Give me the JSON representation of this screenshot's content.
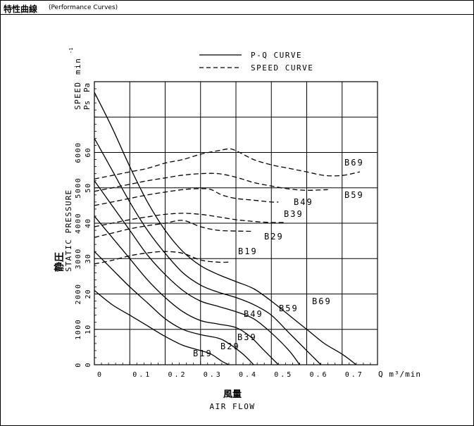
{
  "header": {
    "title_ja": "特性曲線",
    "title_en": "(Performance Curves)"
  },
  "legend": {
    "pq": "P-Q CURVE",
    "speed": "SPEED CURVE"
  },
  "axes": {
    "y_label_ja": "静圧",
    "y_label_en": "STATIC PRESSURE",
    "speed_label": "SPEED",
    "speed_unit": "min",
    "speed_unit_sup": "-1",
    "ps_label": "Ps",
    "pa_label": "Pa",
    "x_label_ja": "風量",
    "x_label_en": "AIR FLOW",
    "x_unit": "Q m³/min"
  },
  "chart_data": {
    "type": "line",
    "title": "特性曲線 (Performance Curves)",
    "xlabel": "風量 AIR FLOW (Q m³/min)",
    "ylabel": "静圧 STATIC PRESSURE (Ps Pa) / SPEED (min⁻¹)",
    "xlim": [
      0,
      0.75
    ],
    "ylim_pressure": [
      0,
      80
    ],
    "ylim_speed": [
      0,
      8000
    ],
    "grid": true,
    "legend_position": "top",
    "x_ticks": [
      "0",
      "0.1",
      "0.2",
      "0.3",
      "0.4",
      "0.5",
      "0.6",
      "0.7"
    ],
    "y_ticks_pressure": [
      "0",
      "10",
      "20",
      "30",
      "40",
      "50",
      "60"
    ],
    "y_ticks_speed": [
      "0",
      "1000",
      "2000",
      "3000",
      "4000",
      "5000",
      "6000"
    ],
    "pq_series": [
      {
        "name": "B19",
        "points": [
          [
            0,
            21
          ],
          [
            0.05,
            17
          ],
          [
            0.1,
            14
          ],
          [
            0.15,
            11
          ],
          [
            0.2,
            8
          ],
          [
            0.25,
            5.5
          ],
          [
            0.3,
            4
          ],
          [
            0.33,
            3
          ],
          [
            0.36,
            1
          ],
          [
            0.38,
            0
          ]
        ]
      },
      {
        "name": "B29",
        "points": [
          [
            0,
            32
          ],
          [
            0.05,
            27
          ],
          [
            0.1,
            22
          ],
          [
            0.15,
            17.5
          ],
          [
            0.2,
            13
          ],
          [
            0.25,
            10
          ],
          [
            0.3,
            8.5
          ],
          [
            0.35,
            7.5
          ],
          [
            0.38,
            6
          ],
          [
            0.42,
            3
          ],
          [
            0.45,
            0
          ]
        ]
      },
      {
        "name": "B39",
        "points": [
          [
            0,
            42
          ],
          [
            0.05,
            36
          ],
          [
            0.1,
            30
          ],
          [
            0.15,
            24
          ],
          [
            0.2,
            19
          ],
          [
            0.25,
            15
          ],
          [
            0.3,
            12.5
          ],
          [
            0.35,
            11.5
          ],
          [
            0.4,
            10.5
          ],
          [
            0.44,
            8
          ],
          [
            0.48,
            4
          ],
          [
            0.52,
            0
          ]
        ]
      },
      {
        "name": "B49",
        "points": [
          [
            0,
            52
          ],
          [
            0.05,
            45
          ],
          [
            0.1,
            38
          ],
          [
            0.15,
            31
          ],
          [
            0.2,
            25.5
          ],
          [
            0.25,
            21
          ],
          [
            0.3,
            18
          ],
          [
            0.35,
            16.5
          ],
          [
            0.4,
            15
          ],
          [
            0.45,
            13
          ],
          [
            0.5,
            9
          ],
          [
            0.55,
            4
          ],
          [
            0.58,
            0
          ]
        ]
      },
      {
        "name": "B59",
        "points": [
          [
            0,
            64
          ],
          [
            0.05,
            55
          ],
          [
            0.1,
            46
          ],
          [
            0.15,
            38
          ],
          [
            0.2,
            31.5
          ],
          [
            0.25,
            26
          ],
          [
            0.3,
            22.5
          ],
          [
            0.35,
            20.5
          ],
          [
            0.4,
            19
          ],
          [
            0.45,
            17
          ],
          [
            0.5,
            14
          ],
          [
            0.55,
            9
          ],
          [
            0.6,
            4
          ],
          [
            0.64,
            0
          ]
        ]
      },
      {
        "name": "B69",
        "points": [
          [
            0,
            77
          ],
          [
            0.05,
            67
          ],
          [
            0.1,
            56
          ],
          [
            0.15,
            46
          ],
          [
            0.2,
            38
          ],
          [
            0.25,
            32
          ],
          [
            0.3,
            28
          ],
          [
            0.35,
            25.5
          ],
          [
            0.4,
            23.5
          ],
          [
            0.45,
            21.5
          ],
          [
            0.5,
            18
          ],
          [
            0.55,
            14
          ],
          [
            0.6,
            10
          ],
          [
            0.65,
            6
          ],
          [
            0.7,
            3
          ],
          [
            0.74,
            0
          ]
        ]
      }
    ],
    "speed_series": [
      {
        "name": "B19",
        "points": [
          [
            0,
            2850
          ],
          [
            0.05,
            2950
          ],
          [
            0.1,
            3080
          ],
          [
            0.15,
            3160
          ],
          [
            0.2,
            3200
          ],
          [
            0.25,
            3150
          ],
          [
            0.3,
            2960
          ],
          [
            0.35,
            2900
          ],
          [
            0.38,
            2900
          ]
        ]
      },
      {
        "name": "B29",
        "points": [
          [
            0,
            3600
          ],
          [
            0.05,
            3720
          ],
          [
            0.1,
            3840
          ],
          [
            0.15,
            3930
          ],
          [
            0.2,
            4000
          ],
          [
            0.25,
            4080
          ],
          [
            0.3,
            3900
          ],
          [
            0.35,
            3800
          ],
          [
            0.4,
            3780
          ],
          [
            0.45,
            3770
          ]
        ]
      },
      {
        "name": "B39",
        "points": [
          [
            0,
            3900
          ],
          [
            0.05,
            4000
          ],
          [
            0.1,
            4100
          ],
          [
            0.15,
            4180
          ],
          [
            0.2,
            4250
          ],
          [
            0.25,
            4280
          ],
          [
            0.3,
            4250
          ],
          [
            0.35,
            4180
          ],
          [
            0.4,
            4100
          ],
          [
            0.45,
            4050
          ],
          [
            0.5,
            4020
          ],
          [
            0.54,
            4020
          ]
        ]
      },
      {
        "name": "B49",
        "points": [
          [
            0,
            4500
          ],
          [
            0.05,
            4600
          ],
          [
            0.1,
            4700
          ],
          [
            0.15,
            4800
          ],
          [
            0.2,
            4880
          ],
          [
            0.25,
            4950
          ],
          [
            0.3,
            4980
          ],
          [
            0.33,
            4950
          ],
          [
            0.36,
            4800
          ],
          [
            0.4,
            4700
          ],
          [
            0.45,
            4650
          ],
          [
            0.5,
            4600
          ],
          [
            0.52,
            4600
          ]
        ]
      },
      {
        "name": "B59",
        "points": [
          [
            0,
            4900
          ],
          [
            0.05,
            5000
          ],
          [
            0.1,
            5100
          ],
          [
            0.15,
            5200
          ],
          [
            0.2,
            5280
          ],
          [
            0.25,
            5360
          ],
          [
            0.3,
            5400
          ],
          [
            0.35,
            5400
          ],
          [
            0.4,
            5300
          ],
          [
            0.45,
            5150
          ],
          [
            0.5,
            5050
          ],
          [
            0.55,
            4970
          ],
          [
            0.6,
            4930
          ],
          [
            0.66,
            4950
          ]
        ]
      },
      {
        "name": "B69",
        "points": [
          [
            0,
            5250
          ],
          [
            0.05,
            5350
          ],
          [
            0.1,
            5450
          ],
          [
            0.15,
            5550
          ],
          [
            0.2,
            5700
          ],
          [
            0.25,
            5800
          ],
          [
            0.3,
            5950
          ],
          [
            0.35,
            6050
          ],
          [
            0.38,
            6100
          ],
          [
            0.4,
            6050
          ],
          [
            0.45,
            5800
          ],
          [
            0.5,
            5650
          ],
          [
            0.55,
            5550
          ],
          [
            0.6,
            5450
          ],
          [
            0.65,
            5350
          ],
          [
            0.7,
            5350
          ],
          [
            0.75,
            5450
          ]
        ]
      }
    ],
    "pq_labels": [
      "B19",
      "B29",
      "B39",
      "B49",
      "B59",
      "B69"
    ],
    "speed_labels": [
      "B19",
      "B29",
      "B39",
      "B49",
      "B59",
      "B69"
    ]
  }
}
